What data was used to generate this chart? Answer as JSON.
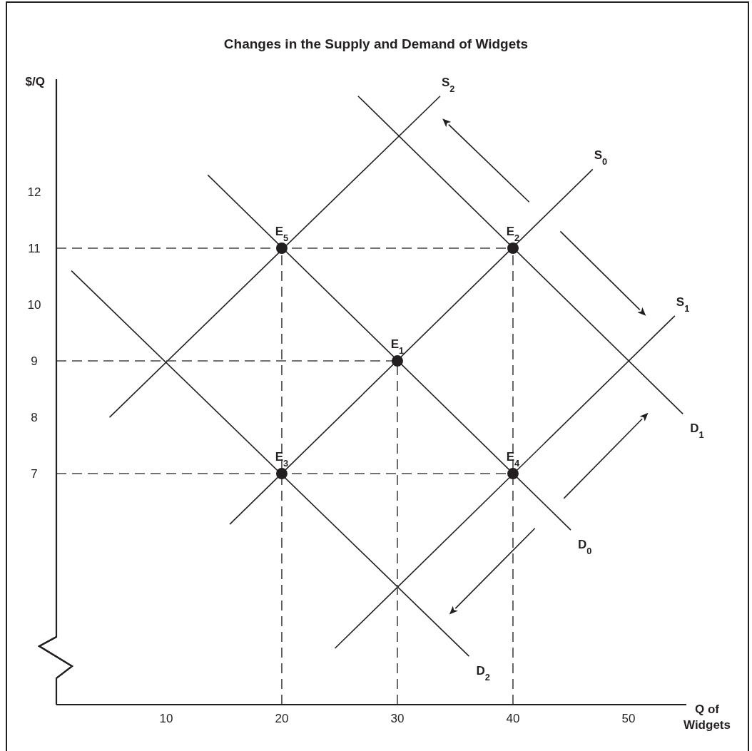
{
  "chart_data": {
    "type": "line",
    "title": "Changes in the Supply and Demand of Widgets",
    "xlabel": "Q of Widgets",
    "ylabel": "$/Q",
    "xlim": [
      0.5,
      55
    ],
    "ylim": [
      2.9,
      14
    ],
    "xticks": [
      10,
      20,
      30,
      40,
      50
    ],
    "yticks": [
      7,
      8,
      9,
      10,
      11,
      12
    ],
    "grid": false,
    "marker": "none",
    "line_style": "solid",
    "series": [
      {
        "name": "S$_{2}$",
        "color": "#231f20",
        "x": [
          5.1,
          33.7
        ],
        "values": [
          8.0,
          13.7
        ]
      },
      {
        "name": "S$_{0}$",
        "color": "#231f20",
        "x": [
          15.5,
          46.9
        ],
        "values": [
          6.1,
          12.4
        ]
      },
      {
        "name": "S$_{1}$",
        "color": "#231f20",
        "x": [
          24.6,
          54
        ],
        "values": [
          3.9,
          9.8
        ]
      },
      {
        "name": "D$_{1}$",
        "color": "#231f20",
        "x": [
          26.6,
          54.7
        ],
        "values": [
          13.7,
          8.06
        ]
      },
      {
        "name": "D$_{0}$",
        "color": "#231f20",
        "x": [
          13.6,
          45
        ],
        "values": [
          12.3,
          6.0
        ]
      },
      {
        "name": "D$_{2}$",
        "color": "#231f20",
        "x": [
          1.8,
          36.2
        ],
        "values": [
          10.6,
          3.76
        ]
      },
      {
        "color": "#444444",
        "line_style": "dashed",
        "x": [
          0.5,
          40
        ],
        "values": [
          11,
          11
        ]
      },
      {
        "color": "#444444",
        "line_style": "dashed",
        "x": [
          0.5,
          30
        ],
        "values": [
          9,
          9
        ]
      },
      {
        "color": "#444444",
        "line_style": "dashed",
        "x": [
          0.5,
          40
        ],
        "values": [
          7,
          7
        ]
      },
      {
        "color": "#444444",
        "line_style": "dashed",
        "x": [
          20,
          20
        ],
        "values": [
          2.9,
          11
        ]
      },
      {
        "color": "#444444",
        "line_style": "dashed",
        "x": [
          30,
          30
        ],
        "values": [
          2.9,
          9
        ]
      },
      {
        "color": "#444444",
        "line_style": "dashed",
        "x": [
          40,
          40
        ],
        "values": [
          2.9,
          11
        ]
      },
      {
        "type": "scatter",
        "marker": "circle",
        "color": "#231f20",
        "x": [
          30,
          40,
          20,
          40,
          20
        ],
        "values": [
          9,
          11,
          7,
          7,
          11
        ]
      }
    ],
    "annotations": [
      {
        "text": "E$_{1}$",
        "x": 30,
        "y": 9
      },
      {
        "text": "E$_{2}$",
        "x": 40,
        "y": 11
      },
      {
        "text": "E$_{3}$",
        "x": 20,
        "y": 7
      },
      {
        "text": "E$_{4}$",
        "x": 40,
        "y": 7
      },
      {
        "text": "E$_{5}$",
        "x": 20,
        "y": 11
      }
    ]
  }
}
